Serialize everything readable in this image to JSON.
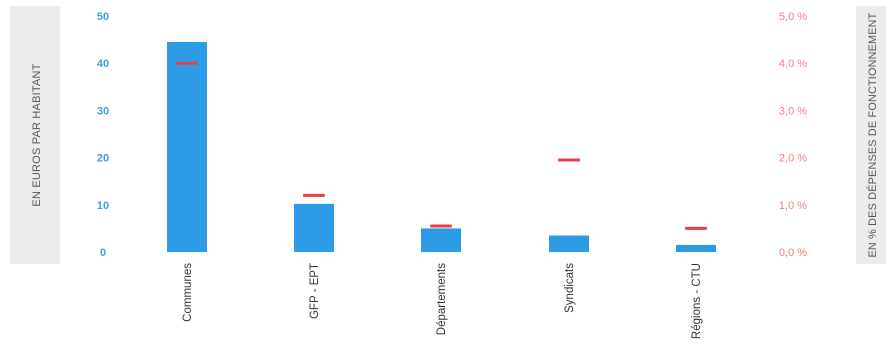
{
  "chart_data": {
    "type": "bar",
    "categories": [
      "Communes",
      "GFP - EPT",
      "Départements",
      "Syndicats",
      "Régions - CTU"
    ],
    "series": [
      {
        "name": "",
        "axis": "left",
        "mark": "bar",
        "color": "#2e9be6",
        "values": [
          44.5,
          10.2,
          5.0,
          3.5,
          1.5
        ]
      },
      {
        "name": "",
        "axis": "right",
        "mark": "dash",
        "color": "#e8404a",
        "values": [
          4.0,
          1.2,
          0.55,
          1.95,
          0.5
        ]
      }
    ],
    "ylabel": "EN EUROS PAR HABITANT",
    "ylim": [
      0,
      50
    ],
    "yticks": [
      "0",
      "10",
      "20",
      "30",
      "40",
      "50"
    ],
    "y2label": "EN % DES DÉPENSES DE FONCTIONNEMENT",
    "y2lim": [
      0,
      5
    ],
    "y2ticks": [
      "0,0 %",
      "1,0 %",
      "2,0 %",
      "3,0 %",
      "4,0 %",
      "5,0 %"
    ],
    "grid": false,
    "legend": "none"
  }
}
